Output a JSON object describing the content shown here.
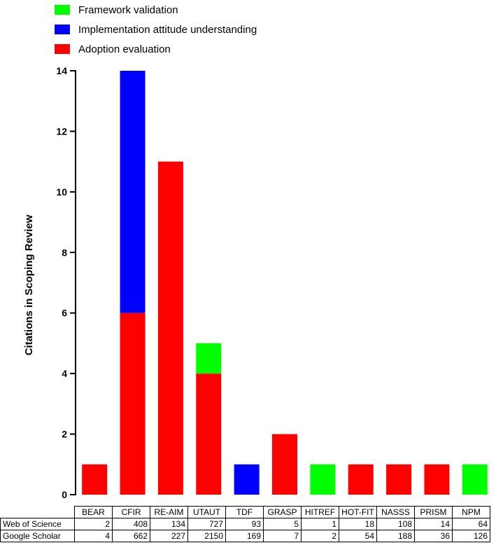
{
  "chart_data": {
    "type": "bar",
    "stacked": true,
    "ylabel": "Citations in Scoping Review",
    "ylim": [
      0,
      14
    ],
    "yticks": [
      0,
      2,
      4,
      6,
      8,
      10,
      12,
      14
    ],
    "categories": [
      "BEAR",
      "CFIR",
      "RE-AIM",
      "UTAUT",
      "TDF",
      "GRASP",
      "HITREF",
      "HOT-FIT",
      "NASSS",
      "PRISM",
      "NPM"
    ],
    "series": [
      {
        "name": "Adoption evaluation",
        "color": "#ff0000",
        "values": [
          1,
          6,
          11,
          4,
          0,
          2,
          0,
          1,
          1,
          1,
          0
        ]
      },
      {
        "name": "Implementation attitude understanding",
        "color": "#0000ff",
        "values": [
          0,
          8,
          0,
          0,
          1,
          0,
          0,
          0,
          0,
          0,
          0
        ]
      },
      {
        "name": "Framework validation",
        "color": "#00ff00",
        "values": [
          0,
          0,
          0,
          1,
          0,
          0,
          1,
          0,
          0,
          0,
          1
        ]
      }
    ],
    "legend": [
      "Framework validation",
      "Implementation attitude understanding",
      "Adoption evaluation"
    ]
  },
  "table": {
    "columns": [
      "BEAR",
      "CFIR",
      "RE-AIM",
      "UTAUT",
      "TDF",
      "GRASP",
      "HITREF",
      "HOT-FIT",
      "NASSS",
      "PRISM",
      "NPM"
    ],
    "rows": [
      {
        "label": "Web of Science",
        "values": [
          "2",
          "408",
          "134",
          "727",
          "93",
          "5",
          "1",
          "18",
          "108",
          "14",
          "64"
        ]
      },
      {
        "label": "Google Scholar",
        "values": [
          "4",
          "662",
          "227",
          "2150",
          "169",
          "7",
          "2",
          "54",
          "188",
          "36",
          "126"
        ]
      }
    ]
  }
}
